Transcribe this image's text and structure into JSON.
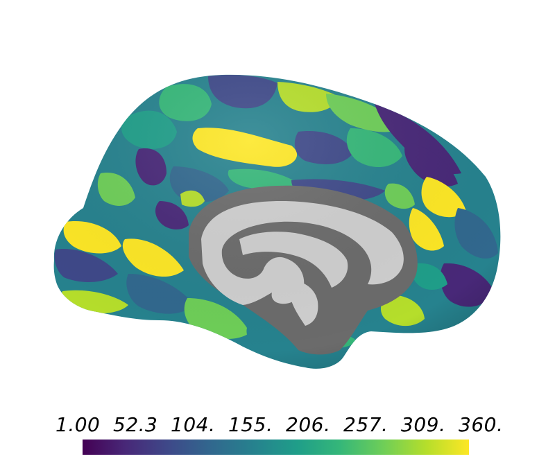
{
  "colormap": {
    "name": "viridis",
    "stops": [
      "#440154",
      "#482878",
      "#3e4989",
      "#31688e",
      "#26828e",
      "#1f9e89",
      "#35b779",
      "#6ece58",
      "#b5de2b",
      "#fde725"
    ]
  },
  "colorbar": {
    "min": 1.0,
    "max": 360.0,
    "ticks": [
      "1.00",
      "52.3",
      "104.",
      "155.",
      "206.",
      "257.",
      "309.",
      "360."
    ]
  },
  "surface": {
    "medial_wall_color": "#6b6b6b",
    "medial_wall_light_color": "#cfcfcf"
  }
}
